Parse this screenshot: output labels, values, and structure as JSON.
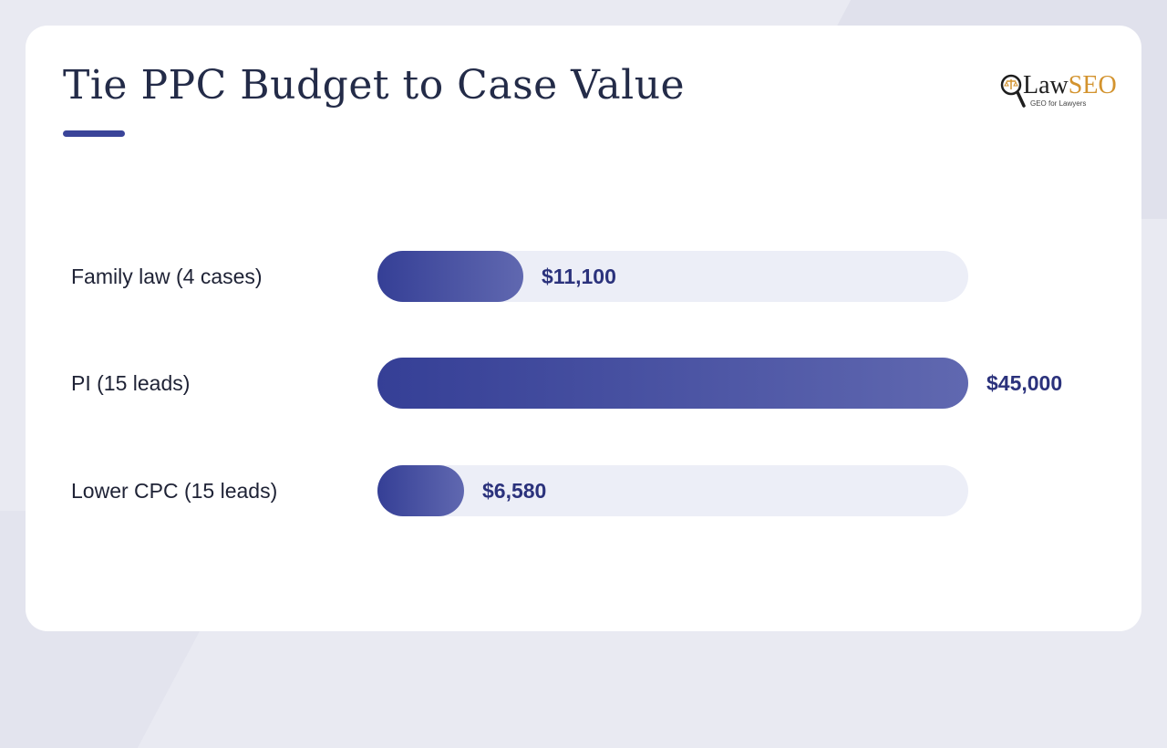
{
  "slide": {
    "title": "Tie PPC Budget to Case Value"
  },
  "logo": {
    "brand_part1": "Law",
    "brand_part2": "SEO",
    "tagline": "GEO for Lawyers",
    "icon": "magnifier-scales-icon"
  },
  "colors": {
    "accent": "#3a4499",
    "bar_start": "#353f96",
    "bar_end": "#6068b0",
    "track": "#eceef7",
    "value_text": "#2b327c"
  },
  "chart_data": {
    "type": "bar",
    "orientation": "horizontal",
    "title": "Tie PPC Budget to Case Value",
    "categories": [
      "Family law (4 cases)",
      "PI (15 leads)",
      "Lower CPC (15 leads)"
    ],
    "values": [
      11100,
      45000,
      6580
    ],
    "value_labels": [
      "$11,100",
      "$45,000",
      "$6,580"
    ],
    "xlim": [
      0,
      45000
    ],
    "grid": false,
    "legend": "none"
  }
}
